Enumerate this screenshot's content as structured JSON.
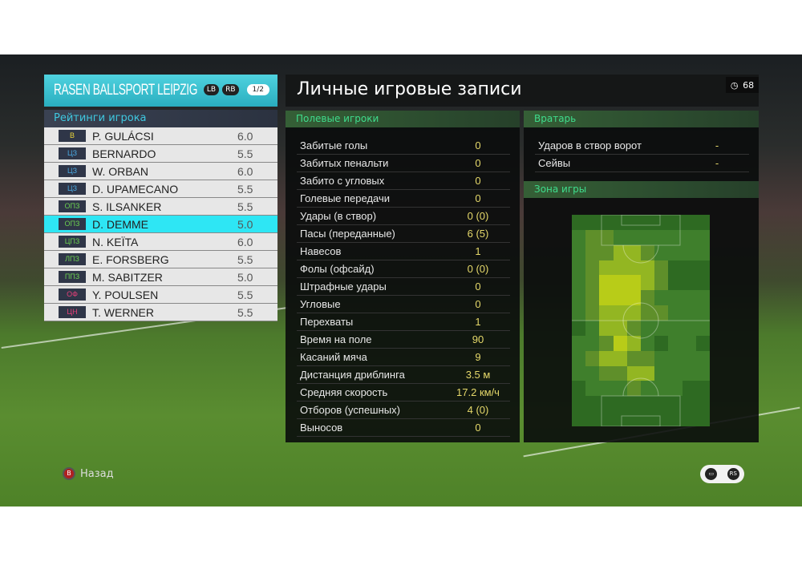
{
  "team": {
    "name": "RASEN BALLSPORT LEIPZIG",
    "lb": "LB",
    "rb": "RB",
    "page": "1/2"
  },
  "ratings": {
    "title": "Рейтинги игрока",
    "players": [
      {
        "pos": "В",
        "pos_color": "#e8d23a",
        "name": "P. GULÁCSI",
        "rating": "6.0"
      },
      {
        "pos": "ЦЗ",
        "pos_color": "#4aa8e0",
        "name": "BERNARDO",
        "rating": "5.5"
      },
      {
        "pos": "ЦЗ",
        "pos_color": "#4aa8e0",
        "name": "W. ORBAN",
        "rating": "6.0"
      },
      {
        "pos": "ЦЗ",
        "pos_color": "#4aa8e0",
        "name": "D. UPAMECANO",
        "rating": "5.5"
      },
      {
        "pos": "ОПЗ",
        "pos_color": "#6cd050",
        "name": "S. ILSANKER",
        "rating": "5.5"
      },
      {
        "pos": "ОПЗ",
        "pos_color": "#6cd050",
        "name": "D. DEMME",
        "rating": "5.0",
        "selected": true
      },
      {
        "pos": "ЦПЗ",
        "pos_color": "#6cd050",
        "name": "N. KEÏTA",
        "rating": "6.0"
      },
      {
        "pos": "ЛПЗ",
        "pos_color": "#6cd050",
        "name": "E. FORSBERG",
        "rating": "5.5"
      },
      {
        "pos": "ППЗ",
        "pos_color": "#6cd050",
        "name": "M. SABITZER",
        "rating": "5.0"
      },
      {
        "pos": "ОФ",
        "pos_color": "#e8407a",
        "name": "Y. POULSEN",
        "rating": "5.5"
      },
      {
        "pos": "ЦН",
        "pos_color": "#e8407a",
        "name": "T. WERNER",
        "rating": "5.5"
      }
    ]
  },
  "header": {
    "title": "Личные игровые записи",
    "timer_icon": "clock-icon",
    "time": "68"
  },
  "field_players": {
    "title": "Полевые игроки",
    "stats": [
      {
        "label": "Забитые голы",
        "value": "0"
      },
      {
        "label": "Забитых пенальти",
        "value": "0"
      },
      {
        "label": "Забито с угловых",
        "value": "0"
      },
      {
        "label": "Голевые передачи",
        "value": "0"
      },
      {
        "label": "Удары (в створ)",
        "value": "0 (0)"
      },
      {
        "label": "Пасы (переданные)",
        "value": "6 (5)"
      },
      {
        "label": "Навесов",
        "value": "1"
      },
      {
        "label": "Фолы (офсайд)",
        "value": "0 (0)"
      },
      {
        "label": "Штрафные удары",
        "value": "0"
      },
      {
        "label": "Угловые",
        "value": "0"
      },
      {
        "label": "Перехваты",
        "value": "1"
      },
      {
        "label": "Время на поле",
        "value": "90"
      },
      {
        "label": "Касаний мяча",
        "value": "9"
      },
      {
        "label": "Дистанция дриблинга",
        "value": "3.5 м"
      },
      {
        "label": "Средняя скорость",
        "value": "17.2 км/ч"
      },
      {
        "label": "Отборов (успешных)",
        "value": "4 (0)"
      },
      {
        "label": "Выносов",
        "value": "0"
      }
    ]
  },
  "goalkeeper": {
    "title": "Вратарь",
    "stats": [
      {
        "label": "Ударов в створ ворот",
        "value": "-"
      },
      {
        "label": "Сейвы",
        "value": "-"
      }
    ]
  },
  "zone": {
    "title": "Зона игры",
    "heatmap": [
      [
        0,
        0,
        0,
        0,
        0,
        0,
        0,
        0,
        0,
        0
      ],
      [
        1,
        2,
        2,
        1,
        1,
        1,
        1,
        1,
        1,
        1
      ],
      [
        1,
        2,
        2,
        3,
        3,
        2,
        1,
        1,
        1,
        1
      ],
      [
        1,
        2,
        3,
        3,
        3,
        3,
        2,
        0,
        0,
        0
      ],
      [
        1,
        2,
        4,
        4,
        4,
        3,
        2,
        0,
        0,
        0
      ],
      [
        1,
        2,
        4,
        4,
        4,
        2,
        1,
        1,
        1,
        1
      ],
      [
        1,
        2,
        3,
        3,
        3,
        2,
        2,
        1,
        1,
        1
      ],
      [
        0,
        1,
        3,
        3,
        2,
        1,
        1,
        1,
        1,
        1
      ],
      [
        1,
        1,
        2,
        4,
        3,
        1,
        0,
        1,
        1,
        0
      ],
      [
        1,
        2,
        3,
        3,
        2,
        2,
        1,
        1,
        1,
        1
      ],
      [
        1,
        1,
        2,
        2,
        3,
        3,
        1,
        1,
        1,
        1
      ],
      [
        0,
        1,
        1,
        1,
        2,
        1,
        1,
        1,
        0,
        0
      ],
      [
        0,
        0,
        0,
        0,
        0,
        0,
        0,
        0,
        0,
        0
      ],
      [
        0,
        0,
        0,
        0,
        0,
        0,
        0,
        0,
        0,
        0
      ]
    ],
    "colors": [
      "#2e6a22",
      "#3f7f2c",
      "#5f8f2a",
      "#93b622",
      "#b8cc18"
    ]
  },
  "footer": {
    "back_button": "B",
    "back_label": "Назад",
    "chat_icon": "chat-icon",
    "rs_label": "RS"
  }
}
